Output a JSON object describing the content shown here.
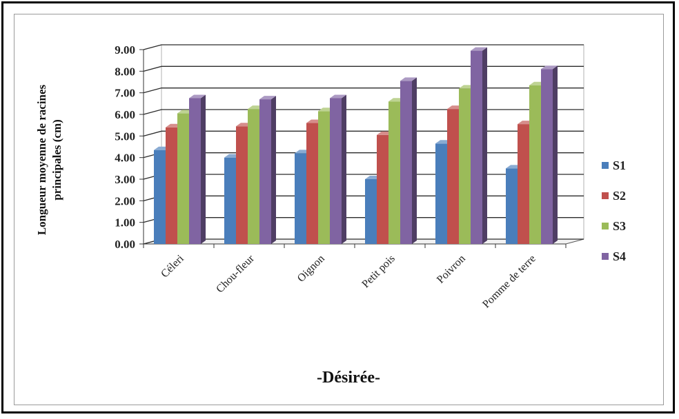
{
  "chart_data": {
    "type": "bar",
    "style": "3d-clustered-column",
    "xlabel": "-Désirée-",
    "ylabel_lines": [
      "Longueur moyenne de racines",
      "principales (cm)"
    ],
    "ylim": [
      0,
      9
    ],
    "yticks": [
      "0.00",
      "1.00",
      "2.00",
      "3.00",
      "4.00",
      "5.00",
      "6.00",
      "7.00",
      "8.00",
      "9.00"
    ],
    "grid": true,
    "legend_position": "right",
    "categories": [
      "Céleri",
      "Chou-fleur",
      "Oignon",
      "Petit pois",
      "Poivron",
      "Pomme de terre"
    ],
    "series": [
      {
        "name": "S1",
        "color": "#4a7ebb",
        "values": [
          4.35,
          4.0,
          4.2,
          3.0,
          4.65,
          3.5
        ]
      },
      {
        "name": "S2",
        "color": "#c0504d",
        "values": [
          5.4,
          5.45,
          5.6,
          5.05,
          6.25,
          5.55
        ]
      },
      {
        "name": "S3",
        "color": "#9bbb59",
        "values": [
          6.05,
          6.25,
          6.15,
          6.6,
          7.2,
          7.35
        ]
      },
      {
        "name": "S4",
        "color": "#8064a2",
        "values": [
          6.75,
          6.7,
          6.75,
          7.55,
          8.95,
          8.1
        ]
      }
    ]
  }
}
